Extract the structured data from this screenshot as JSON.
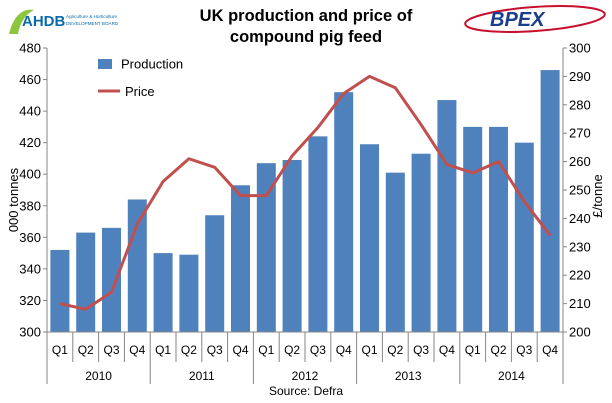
{
  "chart_data": {
    "type": "bar+line",
    "title_line1": "UK production and price of",
    "title_line2": "compound pig feed",
    "source": "Source: Defra",
    "ylabel_left": "000 tonnes",
    "ylabel_right": "£/tonne",
    "ylim_left": [
      300,
      480
    ],
    "ylim_right": [
      200,
      300
    ],
    "yticks_left": [
      "300",
      "320",
      "340",
      "360",
      "380",
      "400",
      "420",
      "440",
      "460",
      "480"
    ],
    "yticks_right": [
      "200",
      "210",
      "220",
      "230",
      "240",
      "250",
      "260",
      "270",
      "280",
      "290",
      "300"
    ],
    "categories": [
      "Q1",
      "Q2",
      "Q3",
      "Q4",
      "Q1",
      "Q2",
      "Q3",
      "Q4",
      "Q1",
      "Q2",
      "Q3",
      "Q4",
      "Q1",
      "Q2",
      "Q3",
      "Q4",
      "Q1",
      "Q2",
      "Q3",
      "Q4"
    ],
    "years": [
      "2010",
      "2011",
      "2012",
      "2013",
      "2014"
    ],
    "series": [
      {
        "name": "Production",
        "axis": "left",
        "kind": "bar",
        "color": "#4f81bd",
        "values": [
          352,
          363,
          366,
          384,
          350,
          349,
          374,
          393,
          407,
          409,
          424,
          452,
          419,
          401,
          413,
          447,
          430,
          430,
          420,
          466
        ]
      },
      {
        "name": "Price",
        "axis": "right",
        "kind": "line",
        "color": "#c0504d",
        "values": [
          210,
          208,
          214,
          238,
          253,
          261,
          258,
          248,
          248,
          262,
          272,
          284,
          290,
          286,
          273,
          259,
          256,
          260,
          246,
          234
        ]
      }
    ],
    "legend_position": "top-left",
    "grid": false
  },
  "logos": {
    "left_text": "AHDB",
    "left_subtext_1": "Agriculture & Horticulture",
    "left_subtext_2": "DEVELOPMENT BOARD",
    "right_text": "BPEX"
  }
}
